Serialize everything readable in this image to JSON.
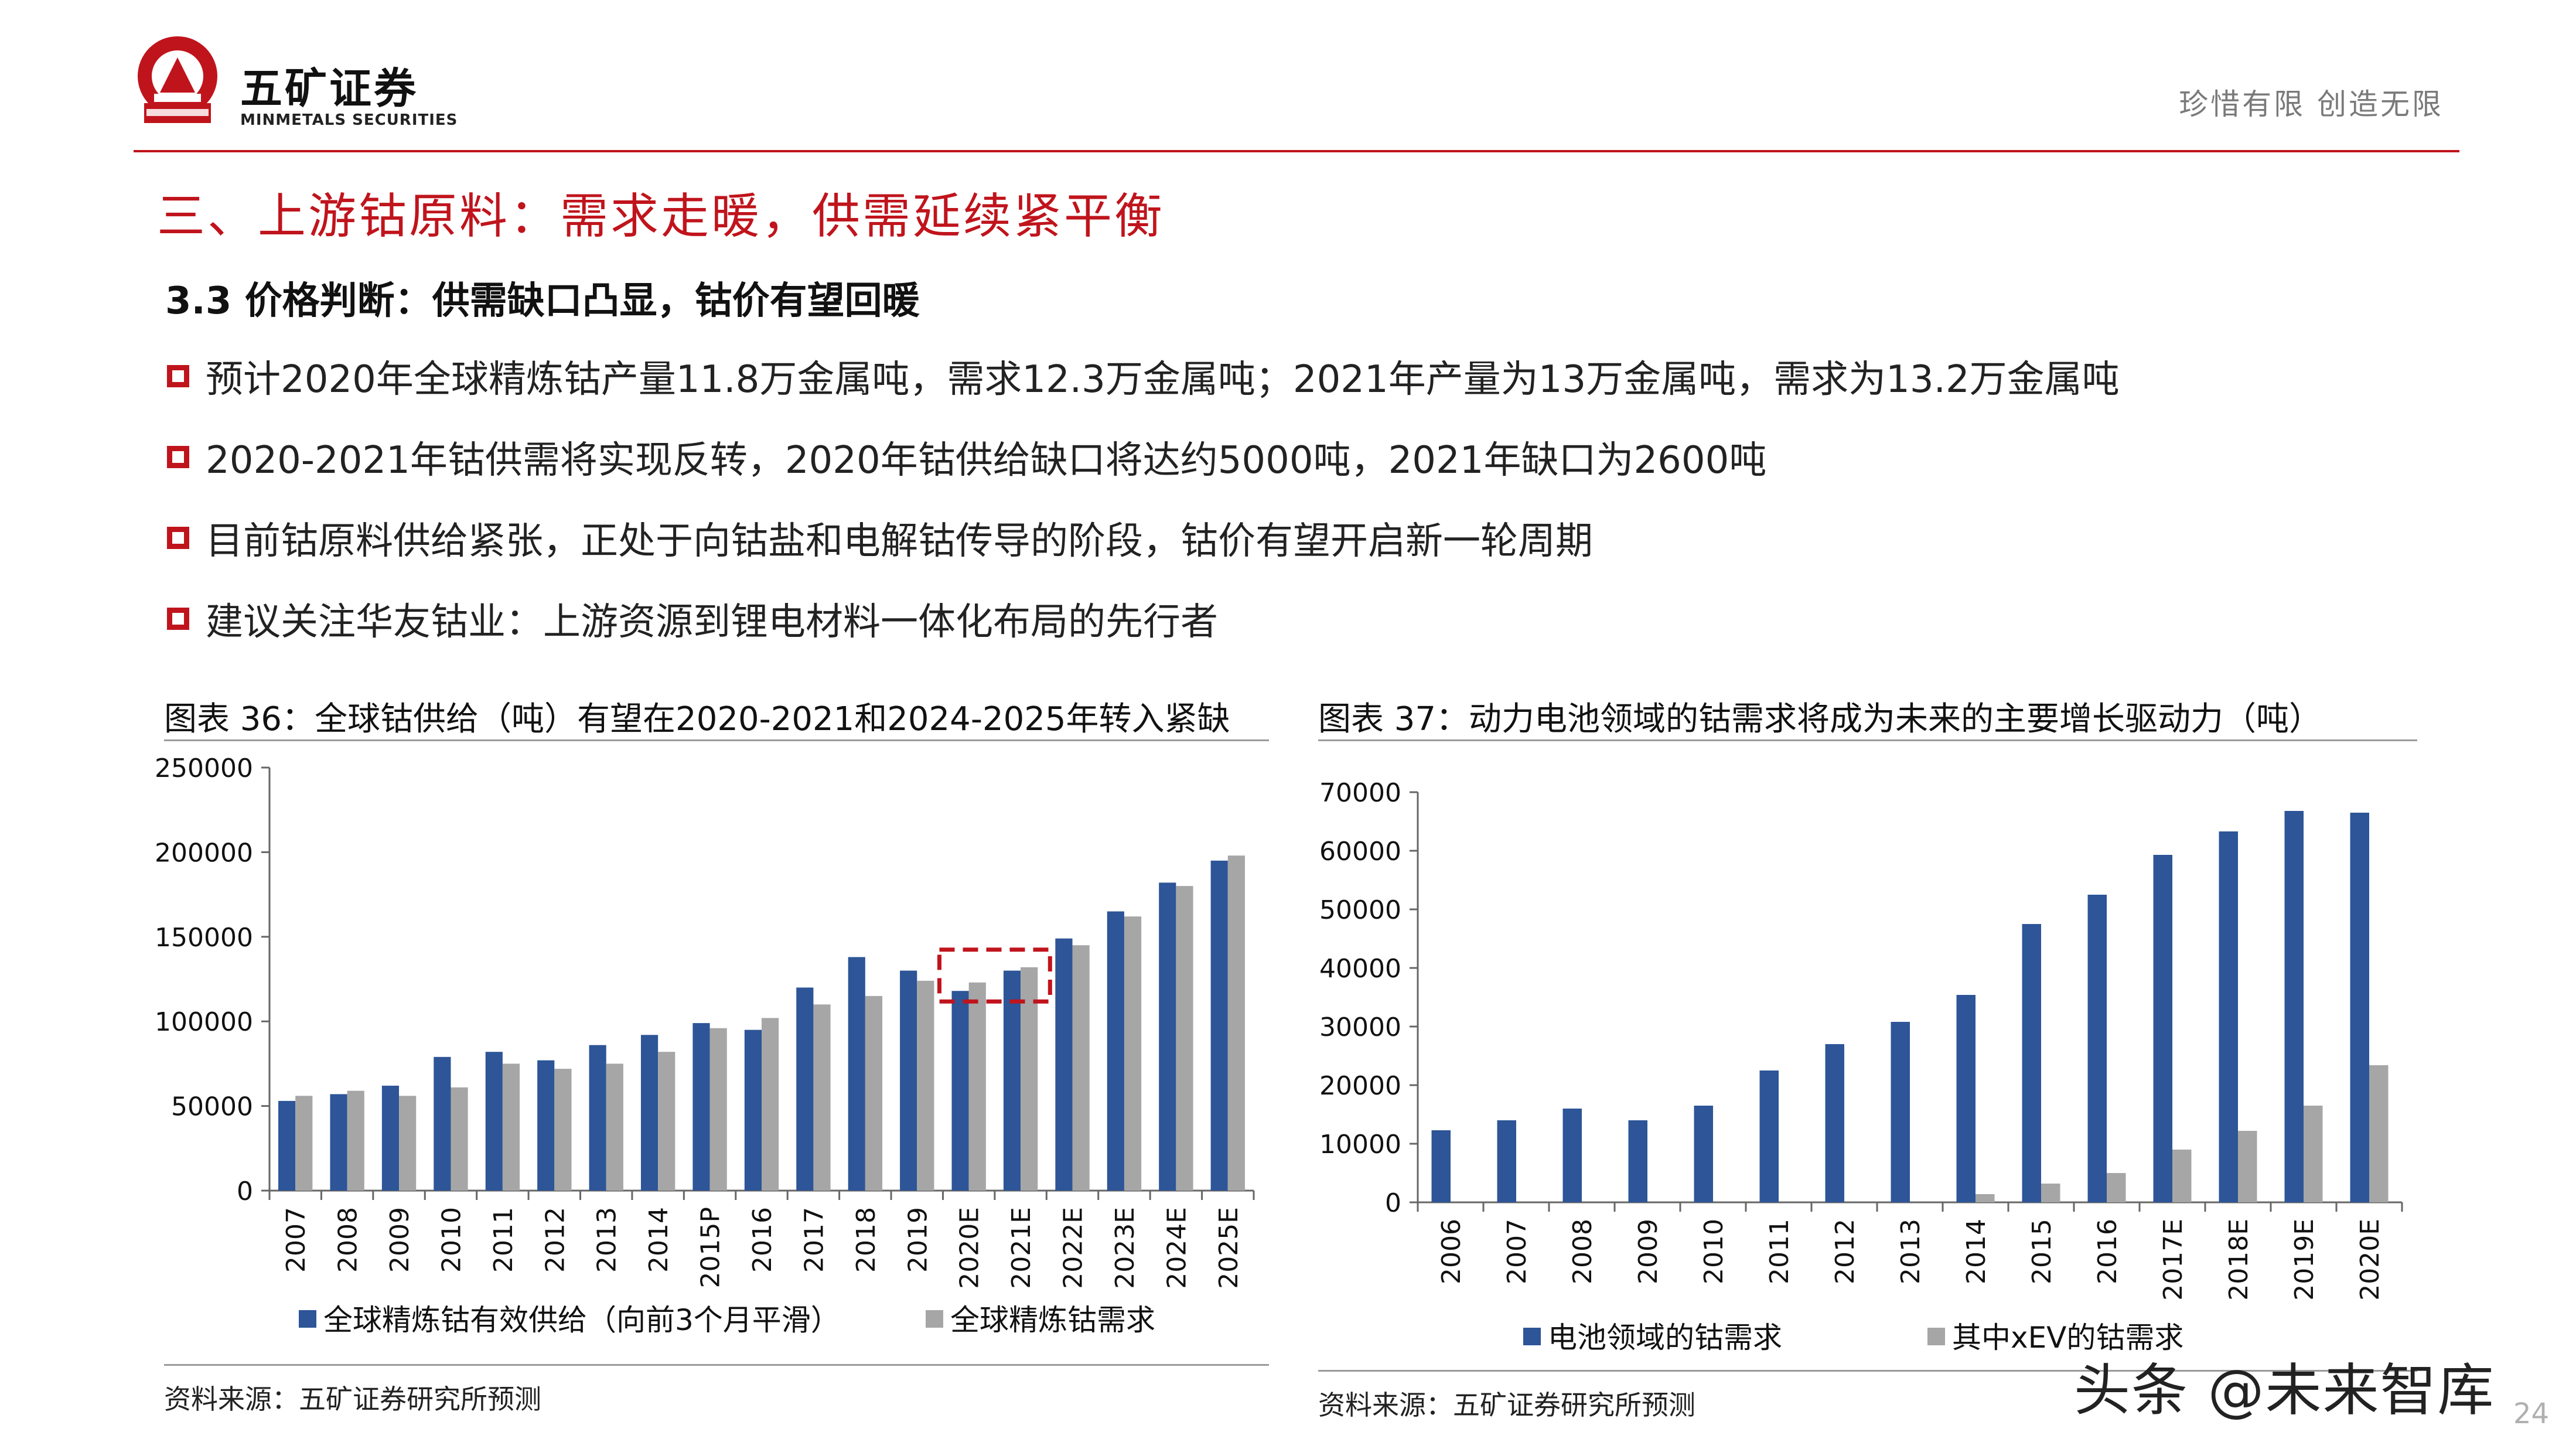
{
  "header": {
    "brand_cn": "五矿证券",
    "brand_en": "MINMETALS SECURITIES",
    "slogan": "珍惜有限  创造无限",
    "logo_text": "MINMETALS"
  },
  "section_title": "三、上游钴原料：需求走暖，供需延续紧平衡",
  "subtitle": "3.3 价格判断：供需缺口凸显，钴价有望回暖",
  "bullets": [
    "预计2020年全球精炼钴产量11.8万金属吨，需求12.3万金属吨；2021年产量为13万金属吨，需求为13.2万金属吨",
    "2020-2021年钴供需将实现反转，2020年钴供给缺口将达约5000吨，2021年缺口为2600吨",
    "目前钴原料供给紧张，正处于向钴盐和电解钴传导的阶段，钴价有望开启新一轮周期",
    "建议关注华友钴业：上游资源到锂电材料一体化布局的先行者"
  ],
  "figure36": {
    "title": "图表 36：全球钴供给（吨）有望在2020-2021和2024-2025年转入紧缺",
    "source": "资料来源：五矿证券研究所预测"
  },
  "figure37": {
    "title": "图表 37：动力电池领域的钴需求将成为未来的主要增长驱动力（吨）",
    "source": "资料来源：五矿证券研究所预测"
  },
  "colors": {
    "accent_red": "#c0141c",
    "series_blue": "#2d5597",
    "series_gray": "#a6a6a6"
  },
  "chart_data": [
    {
      "type": "bar",
      "categories": [
        "2007",
        "2008",
        "2009",
        "2010",
        "2011",
        "2012",
        "2013",
        "2014",
        "2015P",
        "2016",
        "2017",
        "2018",
        "2019",
        "2020E",
        "2021E",
        "2022E",
        "2023E",
        "2024E",
        "2025E"
      ],
      "series": [
        {
          "name": "全球精炼钴有效供给（向前3个月平滑）",
          "color": "#2d5597",
          "values": [
            53000,
            57000,
            62000,
            79000,
            82000,
            77000,
            86000,
            92000,
            99000,
            95000,
            120000,
            138000,
            130000,
            118000,
            130000,
            149000,
            165000,
            182000,
            195000
          ]
        },
        {
          "name": "全球精炼钴需求",
          "color": "#a6a6a6",
          "values": [
            56000,
            59000,
            56000,
            61000,
            75000,
            72000,
            75000,
            82000,
            96000,
            102000,
            110000,
            115000,
            124000,
            123000,
            132000,
            145000,
            162000,
            180000,
            198000
          ]
        }
      ],
      "ylim": [
        0,
        250000
      ],
      "yticks": [
        "0",
        "50000",
        "100000",
        "150000",
        "200000",
        "250000"
      ],
      "highlight_categories": [
        "2020E",
        "2021E"
      ],
      "legend": "bottom",
      "grid": false
    },
    {
      "type": "bar",
      "categories": [
        "2006",
        "2007",
        "2008",
        "2009",
        "2010",
        "2011",
        "2012",
        "2013",
        "2014",
        "2015",
        "2016",
        "2017E",
        "2018E",
        "2019E",
        "2020E"
      ],
      "series": [
        {
          "name": "电池领域的钴需求",
          "color": "#2d5597",
          "values": [
            12300,
            14000,
            16000,
            14000,
            16500,
            22500,
            27000,
            30800,
            35400,
            47500,
            52500,
            59300,
            63300,
            66800,
            66500
          ]
        },
        {
          "name": "其中xEV的钴需求",
          "color": "#a6a6a6",
          "values": [
            0,
            0,
            0,
            0,
            0,
            0,
            0,
            0,
            1400,
            3200,
            5000,
            9000,
            12200,
            16500,
            23400
          ]
        }
      ],
      "ylim": [
        0,
        70000
      ],
      "yticks": [
        "0",
        "10000",
        "20000",
        "30000",
        "40000",
        "50000",
        "60000",
        "70000"
      ],
      "legend": "bottom",
      "grid": false
    }
  ],
  "watermark": "头条 @未来智库",
  "page_number": "24"
}
